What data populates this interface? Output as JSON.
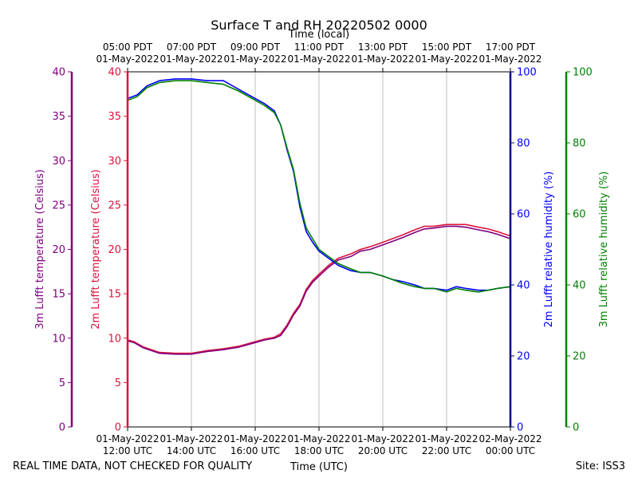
{
  "chart_data": {
    "type": "line",
    "title": "Surface T and RH 20220502 0000",
    "top_axis_label": "Time (local)",
    "xlabel": "Time (UTC)",
    "footer_left": "REAL TIME DATA, NOT CHECKED FOR QUALITY",
    "footer_right": "Site: ISS3",
    "x_range_hours_utc": [
      12,
      24
    ],
    "bottom_ticks": [
      {
        "x": 12,
        "line1": "01-May-2022",
        "line2": "12:00 UTC"
      },
      {
        "x": 14,
        "line1": "01-May-2022",
        "line2": "14:00 UTC"
      },
      {
        "x": 16,
        "line1": "01-May-2022",
        "line2": "16:00 UTC"
      },
      {
        "x": 18,
        "line1": "01-May-2022",
        "line2": "18:00 UTC"
      },
      {
        "x": 20,
        "line1": "01-May-2022",
        "line2": "20:00 UTC"
      },
      {
        "x": 22,
        "line1": "01-May-2022",
        "line2": "22:00 UTC"
      },
      {
        "x": 24,
        "line1": "02-May-2022",
        "line2": "00:00 UTC"
      }
    ],
    "top_ticks": [
      {
        "x": 12,
        "line1": "05:00 PDT",
        "line2": "01-May-2022"
      },
      {
        "x": 14,
        "line1": "07:00 PDT",
        "line2": "01-May-2022"
      },
      {
        "x": 16,
        "line1": "09:00 PDT",
        "line2": "01-May-2022"
      },
      {
        "x": 18,
        "line1": "11:00 PDT",
        "line2": "01-May-2022"
      },
      {
        "x": 20,
        "line1": "13:00 PDT",
        "line2": "01-May-2022"
      },
      {
        "x": 22,
        "line1": "15:00 PDT",
        "line2": "01-May-2022"
      },
      {
        "x": 24,
        "line1": "17:00 PDT",
        "line2": "01-May-2022"
      }
    ],
    "axes": {
      "temp3m": {
        "label": "3m Lufft temperature (Celsius)",
        "range": [
          0,
          40
        ],
        "ticks": [
          "0",
          "5",
          "10",
          "15",
          "20",
          "25",
          "30",
          "35",
          "40"
        ],
        "color": "#800080"
      },
      "temp2m": {
        "label": "2m Lufft temperature (Celsius)",
        "range": [
          0,
          40
        ],
        "ticks": [
          "0",
          "5",
          "10",
          "15",
          "20",
          "25",
          "30",
          "35",
          "40"
        ],
        "color": "#dc143c"
      },
      "rh2m": {
        "label": "2m Lufft relative humidity (%)",
        "range": [
          0,
          100
        ],
        "ticks": [
          "0",
          "20",
          "40",
          "60",
          "80",
          "100"
        ],
        "color": "#0000ff"
      },
      "rh3m": {
        "label": "3m Lufft relative humidity (%)",
        "range": [
          0,
          100
        ],
        "ticks": [
          "0",
          "20",
          "40",
          "60",
          "80",
          "100"
        ],
        "color": "#008000"
      }
    },
    "series": [
      {
        "name": "2m Lufft temperature",
        "axis": "temp2m",
        "color": "#dc143c",
        "x": [
          12,
          12.2,
          12.5,
          13,
          13.5,
          14,
          14.5,
          15,
          15.5,
          16,
          16.3,
          16.6,
          16.8,
          17,
          17.2,
          17.4,
          17.6,
          17.8,
          18,
          18.3,
          18.6,
          19,
          19.3,
          19.6,
          20,
          20.3,
          20.6,
          21,
          21.3,
          21.6,
          22,
          22.3,
          22.6,
          23,
          23.3,
          23.6,
          24
        ],
        "y": [
          9.8,
          9.6,
          9.0,
          8.4,
          8.3,
          8.3,
          8.6,
          8.8,
          9.1,
          9.6,
          9.9,
          10.1,
          10.5,
          11.5,
          12.8,
          13.8,
          15.5,
          16.5,
          17.2,
          18.2,
          19.0,
          19.5,
          20.0,
          20.3,
          20.8,
          21.2,
          21.6,
          22.2,
          22.6,
          22.6,
          22.8,
          22.8,
          22.8,
          22.5,
          22.3,
          22.0,
          21.5
        ]
      },
      {
        "name": "3m Lufft temperature",
        "axis": "temp3m",
        "color": "#800080",
        "x": [
          12,
          12.2,
          12.5,
          13,
          13.5,
          14,
          14.5,
          15,
          15.5,
          16,
          16.3,
          16.6,
          16.8,
          17,
          17.2,
          17.4,
          17.6,
          17.8,
          18,
          18.3,
          18.6,
          19,
          19.3,
          19.6,
          20,
          20.3,
          20.6,
          21,
          21.3,
          21.6,
          22,
          22.3,
          22.6,
          23,
          23.3,
          23.6,
          24
        ],
        "y": [
          9.7,
          9.5,
          8.9,
          8.3,
          8.2,
          8.2,
          8.5,
          8.7,
          9.0,
          9.5,
          9.8,
          10.0,
          10.3,
          11.3,
          12.6,
          13.6,
          15.3,
          16.3,
          17.0,
          18.0,
          18.8,
          19.2,
          19.8,
          20.0,
          20.5,
          20.9,
          21.3,
          21.9,
          22.3,
          22.4,
          22.6,
          22.6,
          22.5,
          22.2,
          22.0,
          21.7,
          21.2
        ]
      },
      {
        "name": "2m Lufft relative humidity",
        "axis": "rh2m",
        "color": "#0000ff",
        "x": [
          12,
          12.3,
          12.6,
          13,
          13.5,
          14,
          14.5,
          15,
          15.5,
          16,
          16.3,
          16.6,
          16.8,
          17,
          17.2,
          17.4,
          17.6,
          17.8,
          18,
          18.3,
          18.6,
          19,
          19.3,
          19.6,
          20,
          20.3,
          20.6,
          21,
          21.3,
          21.6,
          22,
          22.3,
          22.6,
          23,
          23.3,
          23.6,
          24
        ],
        "y": [
          92.5,
          93.5,
          96.0,
          97.5,
          98.0,
          98.0,
          97.5,
          97.5,
          95.0,
          92.5,
          91.0,
          89.0,
          85.0,
          78.0,
          72.0,
          62.0,
          55.0,
          52.0,
          49.5,
          47.5,
          45.5,
          44.0,
          43.5,
          43.5,
          42.5,
          41.5,
          41.0,
          40.0,
          39.0,
          39.0,
          38.5,
          39.5,
          39.0,
          38.5,
          38.5,
          39.0,
          39.5
        ]
      },
      {
        "name": "3m Lufft relative humidity",
        "axis": "rh3m",
        "color": "#008000",
        "x": [
          12,
          12.3,
          12.6,
          13,
          13.5,
          14,
          14.5,
          15,
          15.5,
          16,
          16.3,
          16.6,
          16.8,
          17,
          17.2,
          17.4,
          17.6,
          17.8,
          18,
          18.3,
          18.6,
          19,
          19.3,
          19.6,
          20,
          20.3,
          20.6,
          21,
          21.3,
          21.6,
          22,
          22.3,
          22.6,
          23,
          23.3,
          23.6,
          24
        ],
        "y": [
          92.0,
          93.0,
          95.5,
          97.0,
          97.5,
          97.5,
          97.0,
          96.5,
          94.5,
          92.0,
          90.5,
          88.5,
          85.0,
          78.5,
          72.5,
          63.0,
          56.0,
          53.0,
          50.0,
          48.0,
          46.0,
          44.5,
          43.5,
          43.5,
          42.5,
          41.5,
          40.5,
          39.5,
          39.0,
          39.0,
          38.0,
          39.0,
          38.5,
          38.0,
          38.5,
          39.0,
          39.5
        ]
      }
    ]
  }
}
